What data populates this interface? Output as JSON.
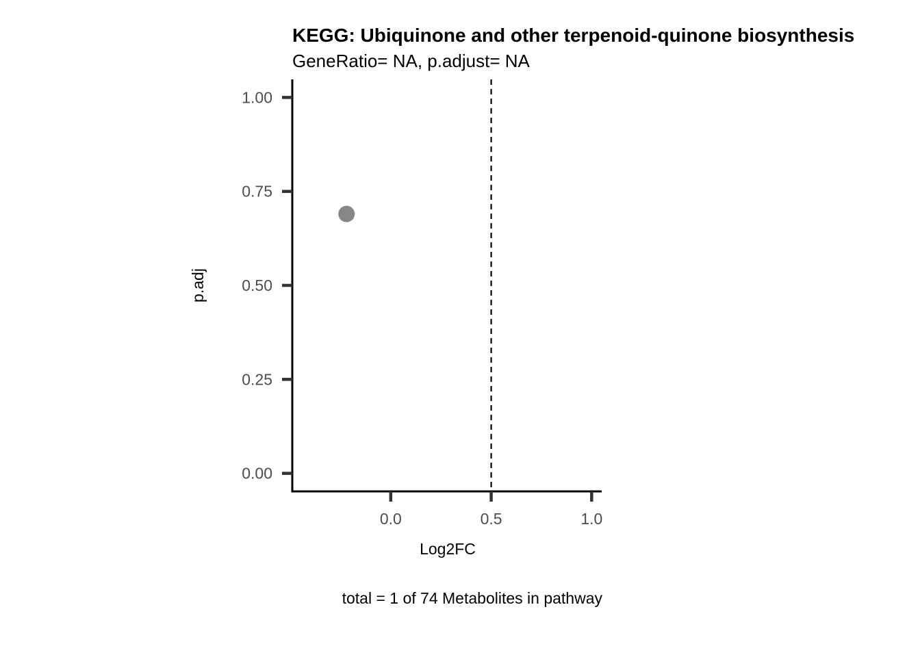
{
  "chart_data": {
    "type": "scatter",
    "title": "KEGG: Ubiquinone and other terpenoid-quinone biosynthesis",
    "subtitle": "GeneRatio= NA, p.adjust= NA",
    "xlabel": "Log2FC",
    "ylabel": "p.adj",
    "caption": "total = 1 of 74 Metabolites in pathway",
    "xlim": [
      -0.49,
      1.05
    ],
    "ylim": [
      -0.048,
      1.048
    ],
    "x_ticks": [
      0.0,
      0.5,
      1.0
    ],
    "x_tick_labels": [
      "0.0",
      "0.5",
      "1.0"
    ],
    "y_ticks": [
      0.0,
      0.25,
      0.5,
      0.75,
      1.0
    ],
    "y_tick_labels": [
      "0.00",
      "0.25",
      "0.50",
      "0.75",
      "1.00"
    ],
    "reference_line": {
      "x": 0.5,
      "style": "dashed",
      "color": "#000000"
    },
    "points": [
      {
        "x": -0.22,
        "y": 0.69
      }
    ],
    "point_color": "#878787",
    "grid": false,
    "legend": "none"
  }
}
